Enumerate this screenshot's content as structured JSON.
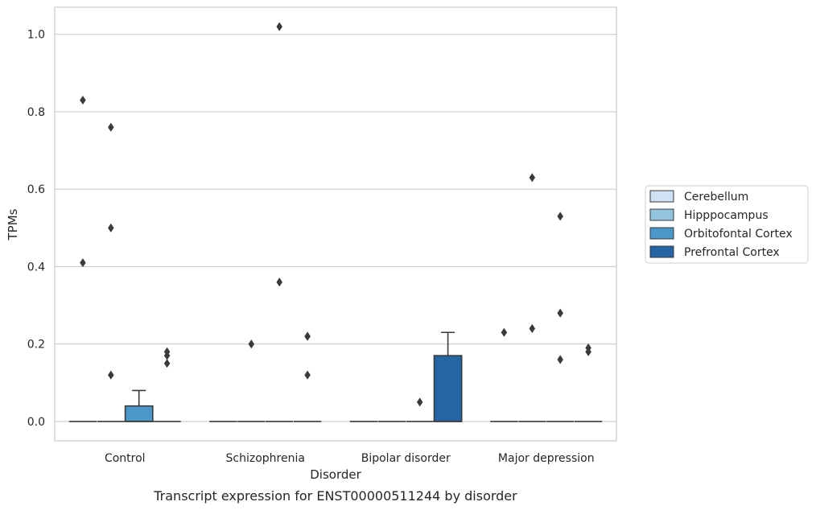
{
  "chart_data": {
    "type": "boxplot",
    "xlabel": "Disorder",
    "ylabel": "TPMs",
    "caption": "Transcript expression for ENST00000511244 by disorder",
    "categories": [
      "Control",
      "Schizophrenia",
      "Bipolar disorder",
      "Major depression"
    ],
    "ylim": [
      -0.05,
      1.07
    ],
    "yticks": [
      0.0,
      0.2,
      0.4,
      0.6,
      0.8,
      1.0
    ],
    "ytick_labels": [
      "0.0",
      "0.2",
      "0.4",
      "0.6",
      "0.8",
      "1.0"
    ],
    "grid": "horizontal",
    "legend": {
      "placement": "right",
      "entries": [
        "Cerebellum",
        "Hipppocampus",
        "Orbitofontal Cortex",
        "Prefrontal Cortex"
      ]
    },
    "colors": {
      "Cerebellum": "#cfe1f2",
      "Hipppocampus": "#93c4de",
      "Orbitofontal Cortex": "#4a98c9",
      "Prefrontal Cortex": "#2565a5"
    },
    "series": [
      {
        "name": "Cerebellum",
        "boxes": [
          {
            "q1": 0,
            "median": 0,
            "q3": 0,
            "whisker_low": 0,
            "whisker_high": 0,
            "outliers": [
              0.83,
              0.41
            ]
          },
          {
            "q1": 0,
            "median": 0,
            "q3": 0,
            "whisker_low": 0,
            "whisker_high": 0,
            "outliers": []
          },
          {
            "q1": 0,
            "median": 0,
            "q3": 0,
            "whisker_low": 0,
            "whisker_high": 0,
            "outliers": []
          },
          {
            "q1": 0,
            "median": 0,
            "q3": 0,
            "whisker_low": 0,
            "whisker_high": 0,
            "outliers": [
              0.23
            ]
          }
        ]
      },
      {
        "name": "Hipppocampus",
        "boxes": [
          {
            "q1": 0,
            "median": 0,
            "q3": 0,
            "whisker_low": 0,
            "whisker_high": 0,
            "outliers": [
              0.76,
              0.5,
              0.12
            ]
          },
          {
            "q1": 0,
            "median": 0,
            "q3": 0,
            "whisker_low": 0,
            "whisker_high": 0,
            "outliers": [
              0.2
            ]
          },
          {
            "q1": 0,
            "median": 0,
            "q3": 0,
            "whisker_low": 0,
            "whisker_high": 0,
            "outliers": []
          },
          {
            "q1": 0,
            "median": 0,
            "q3": 0,
            "whisker_low": 0,
            "whisker_high": 0,
            "outliers": [
              0.63,
              0.24
            ]
          }
        ]
      },
      {
        "name": "Orbitofontal Cortex",
        "boxes": [
          {
            "q1": 0,
            "median": 0,
            "q3": 0.04,
            "whisker_low": 0,
            "whisker_high": 0.08,
            "outliers": []
          },
          {
            "q1": 0,
            "median": 0,
            "q3": 0,
            "whisker_low": 0,
            "whisker_high": 0,
            "outliers": [
              1.02,
              0.36
            ]
          },
          {
            "q1": 0,
            "median": 0,
            "q3": 0,
            "whisker_low": 0,
            "whisker_high": 0,
            "outliers": [
              0.05
            ]
          },
          {
            "q1": 0,
            "median": 0,
            "q3": 0,
            "whisker_low": 0,
            "whisker_high": 0,
            "outliers": [
              0.53,
              0.28,
              0.16
            ]
          }
        ]
      },
      {
        "name": "Prefrontal Cortex",
        "boxes": [
          {
            "q1": 0,
            "median": 0,
            "q3": 0,
            "whisker_low": 0,
            "whisker_high": 0,
            "outliers": [
              0.18,
              0.17,
              0.15
            ]
          },
          {
            "q1": 0,
            "median": 0,
            "q3": 0,
            "whisker_low": 0,
            "whisker_high": 0,
            "outliers": [
              0.22,
              0.22,
              0.12
            ]
          },
          {
            "q1": 0,
            "median": 0,
            "q3": 0.17,
            "whisker_low": 0,
            "whisker_high": 0.23,
            "outliers": []
          },
          {
            "q1": 0,
            "median": 0,
            "q3": 0,
            "whisker_low": 0,
            "whisker_high": 0,
            "outliers": [
              0.19,
              0.18
            ]
          }
        ]
      }
    ]
  }
}
